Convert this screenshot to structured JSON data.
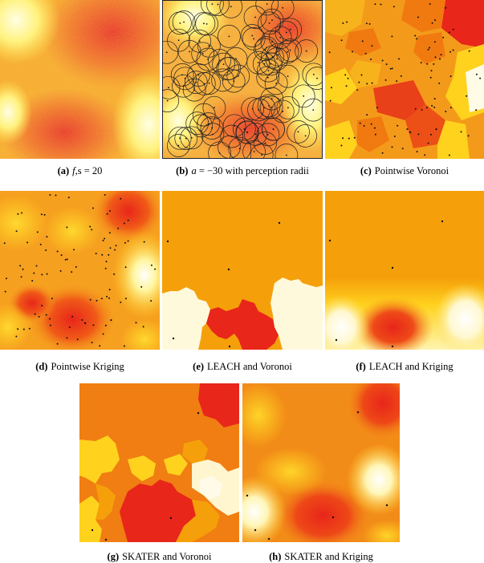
{
  "figure": {
    "panels": [
      {
        "label": "(a)",
        "caption_math": "f",
        "caption_rest": ",s = 20",
        "kind": "smooth-noisy"
      },
      {
        "label": "(b)",
        "caption_math": "a",
        "caption_rest": " = −30 with perception radii",
        "kind": "noisy-circles"
      },
      {
        "label": "(c)",
        "caption_math": "",
        "caption_rest": "Pointwise Voronoi",
        "kind": "voronoi"
      },
      {
        "label": "(d)",
        "caption_math": "",
        "caption_rest": "Pointwise Kriging",
        "kind": "kriging"
      },
      {
        "label": "(e)",
        "caption_math": "",
        "caption_rest": "LEACH and Voronoi",
        "kind": "leach-voronoi"
      },
      {
        "label": "(f)",
        "caption_math": "",
        "caption_rest": "LEACH and Kriging",
        "kind": "leach-kriging"
      },
      {
        "label": "(g)",
        "caption_math": "",
        "caption_rest": "SKATER and Voronoi",
        "kind": "skater-voronoi"
      },
      {
        "label": "(h)",
        "caption_math": "",
        "caption_rest": "SKATER and Kriging",
        "kind": "skater-kriging"
      }
    ],
    "colors": {
      "red": "#e8261a",
      "dark_orange": "#f07a10",
      "orange": "#f5a00a",
      "yellow": "#ffd21e",
      "pale": "#fff9d8",
      "white": "#ffffff"
    }
  }
}
